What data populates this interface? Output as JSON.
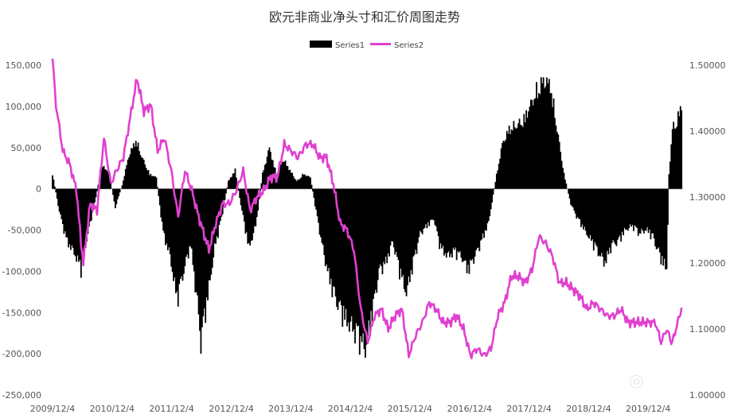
{
  "chart_data": {
    "type": "bar+line",
    "title": "欧元非商业净头寸和汇价周图走势",
    "xlabel": "",
    "ylabel_left": "",
    "ylabel_right": "",
    "x_start": "2009-12-04",
    "x_end": "2020-06-30",
    "x_tick_labels": [
      "2009/12/4",
      "2010/12/4",
      "2011/12/4",
      "2012/12/4",
      "2013/12/4",
      "2014/12/4",
      "2015/12/4",
      "2016/12/4",
      "2017/12/4",
      "2018/12/4",
      "2019/12/4"
    ],
    "y_left": {
      "min": -250000,
      "max": 150000,
      "step": 50000,
      "tick_labels": [
        "150,000",
        "100,000",
        "50,000",
        "0",
        "-50,000",
        "-100,000",
        "-150,000",
        "-200,000",
        "-250,000"
      ]
    },
    "y_right": {
      "min": 1.0,
      "max": 1.5,
      "step": 0.1,
      "tick_labels": [
        "1.50000",
        "1.40000",
        "1.30000",
        "1.20000",
        "1.10000",
        "1.00000"
      ]
    },
    "legend_position": "top-center",
    "series": [
      {
        "name": "Series1",
        "type": "bar",
        "axis": "left",
        "color": "#000000",
        "points": [
          [
            "2009-12-04",
            20000
          ],
          [
            "2010-01-15",
            -30000
          ],
          [
            "2010-03-01",
            -70000
          ],
          [
            "2010-04-15",
            -85000
          ],
          [
            "2010-05-28",
            -108000
          ],
          [
            "2010-07-09",
            -60000
          ],
          [
            "2010-08-20",
            -20000
          ],
          [
            "2010-10-01",
            30000
          ],
          [
            "2010-11-12",
            25000
          ],
          [
            "2010-12-24",
            -25000
          ],
          [
            "2011-02-04",
            5000
          ],
          [
            "2011-03-18",
            45000
          ],
          [
            "2011-04-29",
            65000
          ],
          [
            "2011-06-10",
            40000
          ],
          [
            "2011-07-22",
            20000
          ],
          [
            "2011-09-02",
            15000
          ],
          [
            "2011-10-14",
            -60000
          ],
          [
            "2011-11-25",
            -90000
          ],
          [
            "2012-01-06",
            -150000
          ],
          [
            "2012-02-17",
            -110000
          ],
          [
            "2012-03-30",
            -75000
          ],
          [
            "2012-05-11",
            -155000
          ],
          [
            "2012-06-01",
            -205000
          ],
          [
            "2012-07-13",
            -145000
          ],
          [
            "2012-08-24",
            -80000
          ],
          [
            "2012-10-05",
            -40000
          ],
          [
            "2012-11-16",
            10000
          ],
          [
            "2012-12-28",
            25000
          ],
          [
            "2013-02-08",
            -30000
          ],
          [
            "2013-03-22",
            -80000
          ],
          [
            "2013-05-03",
            -50000
          ],
          [
            "2013-06-14",
            20000
          ],
          [
            "2013-07-26",
            55000
          ],
          [
            "2013-09-06",
            20000
          ],
          [
            "2013-10-18",
            40000
          ],
          [
            "2013-11-29",
            25000
          ],
          [
            "2014-01-10",
            10000
          ],
          [
            "2014-02-21",
            20000
          ],
          [
            "2014-04-04",
            15000
          ],
          [
            "2014-05-16",
            -40000
          ],
          [
            "2014-06-27",
            -90000
          ],
          [
            "2014-08-08",
            -130000
          ],
          [
            "2014-09-19",
            -155000
          ],
          [
            "2014-10-31",
            -175000
          ],
          [
            "2014-12-12",
            -185000
          ],
          [
            "2015-01-23",
            -200000
          ],
          [
            "2015-03-06",
            -215000
          ],
          [
            "2015-04-17",
            -170000
          ],
          [
            "2015-05-29",
            -110000
          ],
          [
            "2015-07-10",
            -100000
          ],
          [
            "2015-08-21",
            -70000
          ],
          [
            "2015-10-02",
            -110000
          ],
          [
            "2015-11-13",
            -140000
          ],
          [
            "2015-12-25",
            -100000
          ],
          [
            "2016-02-05",
            -60000
          ],
          [
            "2016-03-18",
            -50000
          ],
          [
            "2016-04-29",
            -40000
          ],
          [
            "2016-06-10",
            -80000
          ],
          [
            "2016-07-22",
            -90000
          ],
          [
            "2016-09-02",
            -85000
          ],
          [
            "2016-10-14",
            -90000
          ],
          [
            "2016-11-25",
            -110000
          ],
          [
            "2017-01-06",
            -90000
          ],
          [
            "2017-02-17",
            -70000
          ],
          [
            "2017-03-31",
            -45000
          ],
          [
            "2017-05-12",
            10000
          ],
          [
            "2017-06-23",
            60000
          ],
          [
            "2017-08-04",
            80000
          ],
          [
            "2017-09-15",
            85000
          ],
          [
            "2017-10-27",
            90000
          ],
          [
            "2017-12-08",
            110000
          ],
          [
            "2018-01-19",
            130000
          ],
          [
            "2018-03-02",
            145000
          ],
          [
            "2018-04-13",
            140000
          ],
          [
            "2018-05-25",
            80000
          ],
          [
            "2018-07-06",
            20000
          ],
          [
            "2018-08-17",
            -20000
          ],
          [
            "2018-09-28",
            -40000
          ],
          [
            "2018-11-09",
            -55000
          ],
          [
            "2018-12-21",
            -70000
          ],
          [
            "2019-02-01",
            -85000
          ],
          [
            "2019-03-15",
            -100000
          ],
          [
            "2019-04-26",
            -75000
          ],
          [
            "2019-06-07",
            -70000
          ],
          [
            "2019-07-19",
            -55000
          ],
          [
            "2019-08-30",
            -50000
          ],
          [
            "2019-10-11",
            -60000
          ],
          [
            "2019-11-22",
            -55000
          ],
          [
            "2020-01-03",
            -65000
          ],
          [
            "2020-02-14",
            -90000
          ],
          [
            "2020-03-27",
            -110000
          ],
          [
            "2020-04-10",
            20000
          ],
          [
            "2020-05-01",
            80000
          ],
          [
            "2020-06-05",
            95000
          ],
          [
            "2020-06-30",
            120000
          ]
        ]
      },
      {
        "name": "Series2",
        "type": "line",
        "axis": "right",
        "color": "#e040d0",
        "points": [
          [
            "2009-12-04",
            1.51
          ],
          [
            "2009-12-25",
            1.44
          ],
          [
            "2010-02-05",
            1.37
          ],
          [
            "2010-03-19",
            1.35
          ],
          [
            "2010-04-30",
            1.31
          ],
          [
            "2010-05-28",
            1.23
          ],
          [
            "2010-06-11",
            1.2
          ],
          [
            "2010-07-23",
            1.29
          ],
          [
            "2010-09-03",
            1.28
          ],
          [
            "2010-10-15",
            1.39
          ],
          [
            "2010-11-26",
            1.32
          ],
          [
            "2010-12-31",
            1.34
          ],
          [
            "2011-02-11",
            1.36
          ],
          [
            "2011-03-25",
            1.42
          ],
          [
            "2011-05-06",
            1.48
          ],
          [
            "2011-06-17",
            1.43
          ],
          [
            "2011-07-29",
            1.44
          ],
          [
            "2011-09-09",
            1.37
          ],
          [
            "2011-10-21",
            1.39
          ],
          [
            "2011-12-02",
            1.34
          ],
          [
            "2012-01-13",
            1.27
          ],
          [
            "2012-02-24",
            1.34
          ],
          [
            "2012-04-06",
            1.31
          ],
          [
            "2012-05-18",
            1.27
          ],
          [
            "2012-07-20",
            1.22
          ],
          [
            "2012-08-31",
            1.26
          ],
          [
            "2012-10-12",
            1.29
          ],
          [
            "2012-11-23",
            1.29
          ],
          [
            "2013-01-04",
            1.31
          ],
          [
            "2013-02-15",
            1.34
          ],
          [
            "2013-03-29",
            1.28
          ],
          [
            "2013-05-10",
            1.3
          ],
          [
            "2013-06-21",
            1.31
          ],
          [
            "2013-08-02",
            1.33
          ],
          [
            "2013-09-13",
            1.33
          ],
          [
            "2013-10-25",
            1.38
          ],
          [
            "2013-12-06",
            1.37
          ],
          [
            "2014-01-17",
            1.36
          ],
          [
            "2014-03-07",
            1.38
          ],
          [
            "2014-04-18",
            1.38
          ],
          [
            "2014-05-30",
            1.36
          ],
          [
            "2014-07-11",
            1.36
          ],
          [
            "2014-08-22",
            1.32
          ],
          [
            "2014-10-03",
            1.26
          ],
          [
            "2014-11-14",
            1.25
          ],
          [
            "2014-12-26",
            1.22
          ],
          [
            "2015-02-06",
            1.13
          ],
          [
            "2015-03-20",
            1.08
          ],
          [
            "2015-05-01",
            1.12
          ],
          [
            "2015-06-12",
            1.13
          ],
          [
            "2015-07-24",
            1.1
          ],
          [
            "2015-09-04",
            1.12
          ],
          [
            "2015-10-16",
            1.13
          ],
          [
            "2015-11-27",
            1.06
          ],
          [
            "2016-01-08",
            1.09
          ],
          [
            "2016-02-19",
            1.11
          ],
          [
            "2016-04-01",
            1.14
          ],
          [
            "2016-05-13",
            1.13
          ],
          [
            "2016-06-24",
            1.11
          ],
          [
            "2016-08-05",
            1.11
          ],
          [
            "2016-09-16",
            1.12
          ],
          [
            "2016-10-28",
            1.1
          ],
          [
            "2016-12-09",
            1.06
          ],
          [
            "2017-01-20",
            1.07
          ],
          [
            "2017-03-03",
            1.06
          ],
          [
            "2017-04-14",
            1.07
          ],
          [
            "2017-05-26",
            1.12
          ],
          [
            "2017-07-07",
            1.14
          ],
          [
            "2017-08-18",
            1.18
          ],
          [
            "2017-09-29",
            1.18
          ],
          [
            "2017-11-10",
            1.17
          ],
          [
            "2017-12-22",
            1.19
          ],
          [
            "2018-02-02",
            1.24
          ],
          [
            "2018-03-16",
            1.23
          ],
          [
            "2018-04-27",
            1.21
          ],
          [
            "2018-06-08",
            1.17
          ],
          [
            "2018-07-20",
            1.17
          ],
          [
            "2018-08-31",
            1.16
          ],
          [
            "2018-10-12",
            1.15
          ],
          [
            "2018-11-23",
            1.13
          ],
          [
            "2019-01-04",
            1.14
          ],
          [
            "2019-02-15",
            1.13
          ],
          [
            "2019-03-29",
            1.12
          ],
          [
            "2019-05-10",
            1.12
          ],
          [
            "2019-06-21",
            1.13
          ],
          [
            "2019-08-02",
            1.11
          ],
          [
            "2019-09-13",
            1.11
          ],
          [
            "2019-10-25",
            1.11
          ],
          [
            "2019-12-06",
            1.11
          ],
          [
            "2020-01-17",
            1.11
          ],
          [
            "2020-02-21",
            1.08
          ],
          [
            "2020-03-27",
            1.1
          ],
          [
            "2020-04-24",
            1.08
          ],
          [
            "2020-05-15",
            1.09
          ],
          [
            "2020-05-29",
            1.11
          ],
          [
            "2020-06-19",
            1.12
          ],
          [
            "2020-06-30",
            1.15
          ]
        ]
      }
    ]
  }
}
